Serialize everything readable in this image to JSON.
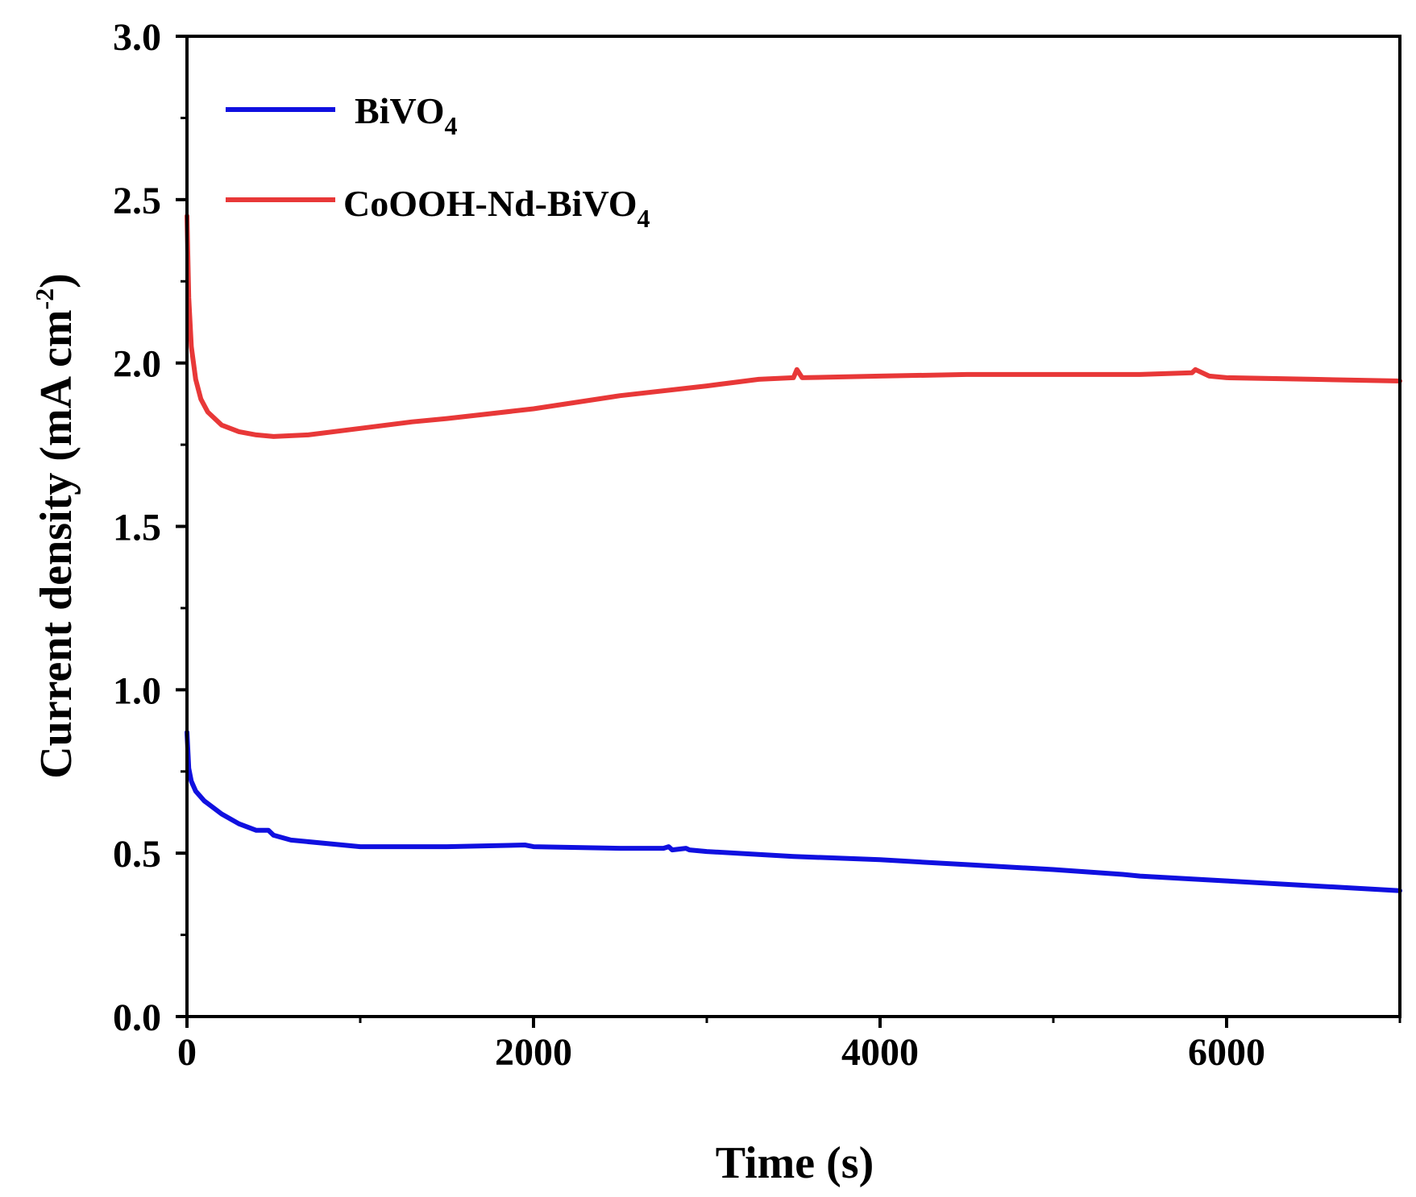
{
  "chart_data": {
    "type": "line",
    "title": "",
    "xlabel": "Time (s)",
    "ylabel": "Current density (mA cm",
    "ylabel_sup": "-2",
    "ylabel_suffix": ")",
    "xlim": [
      0,
      7000
    ],
    "ylim": [
      0,
      3.0
    ],
    "grid": false,
    "legend_position": "top-left",
    "x_ticks": [
      {
        "value": 0,
        "label": "0"
      },
      {
        "value": 2000,
        "label": "2000"
      },
      {
        "value": 4000,
        "label": "4000"
      },
      {
        "value": 6000,
        "label": "6000"
      }
    ],
    "x_minor_ticks": [
      1000,
      3000,
      5000,
      7000
    ],
    "y_ticks": [
      {
        "value": 0.0,
        "label": "0.0"
      },
      {
        "value": 0.5,
        "label": "0.5"
      },
      {
        "value": 1.0,
        "label": "1.0"
      },
      {
        "value": 1.5,
        "label": "1.5"
      },
      {
        "value": 2.0,
        "label": "2.0"
      },
      {
        "value": 2.5,
        "label": "2.5"
      },
      {
        "value": 3.0,
        "label": "3.0"
      }
    ],
    "y_minor_ticks": [
      0.25,
      0.75,
      1.25,
      1.75,
      2.25,
      2.75
    ],
    "series": [
      {
        "name": "BiVO",
        "name_sub": "4",
        "color": "#1010e0",
        "x": [
          0,
          10,
          25,
          50,
          100,
          200,
          300,
          400,
          470,
          500,
          600,
          800,
          1000,
          1500,
          1950,
          2000,
          2500,
          2750,
          2780,
          2800,
          2880,
          2900,
          3000,
          3500,
          4000,
          4500,
          5000,
          5400,
          5500,
          6000,
          6500,
          7000
        ],
        "y": [
          0.87,
          0.76,
          0.72,
          0.69,
          0.66,
          0.62,
          0.59,
          0.57,
          0.57,
          0.555,
          0.54,
          0.53,
          0.52,
          0.52,
          0.525,
          0.52,
          0.515,
          0.515,
          0.52,
          0.51,
          0.515,
          0.51,
          0.505,
          0.49,
          0.48,
          0.465,
          0.45,
          0.435,
          0.43,
          0.415,
          0.4,
          0.385
        ]
      },
      {
        "name": "CoOOH-Nd-BiVO",
        "name_sub": "4",
        "color": "#e83838",
        "x": [
          0,
          10,
          25,
          50,
          80,
          120,
          200,
          300,
          400,
          500,
          700,
          1000,
          1300,
          1500,
          2000,
          2500,
          3000,
          3300,
          3500,
          3520,
          3550,
          4000,
          4500,
          5000,
          5500,
          5800,
          5820,
          5900,
          6000,
          6500,
          7000
        ],
        "y": [
          2.45,
          2.2,
          2.05,
          1.95,
          1.89,
          1.85,
          1.81,
          1.79,
          1.78,
          1.775,
          1.78,
          1.8,
          1.82,
          1.83,
          1.86,
          1.9,
          1.93,
          1.95,
          1.955,
          1.98,
          1.955,
          1.96,
          1.965,
          1.965,
          1.965,
          1.97,
          1.98,
          1.96,
          1.955,
          1.95,
          1.945
        ]
      }
    ]
  }
}
